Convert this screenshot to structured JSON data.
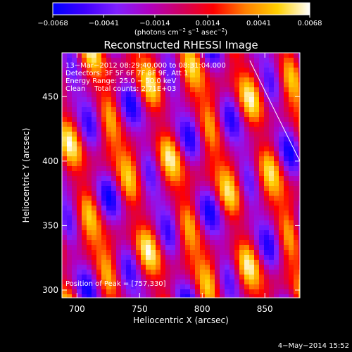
{
  "chart_data": {
    "type": "heatmap",
    "title": "Reconstructed RHESSI Image",
    "xlabel": "Heliocentric X (arcsec)",
    "ylabel": "Heliocentric Y (arcsec)",
    "xlim": [
      688,
      878
    ],
    "ylim": [
      294,
      484
    ],
    "x_ticks": [
      {
        "value": 700,
        "label": "700"
      },
      {
        "value": 750,
        "label": "750"
      },
      {
        "value": 800,
        "label": "800"
      },
      {
        "value": 850,
        "label": "850"
      }
    ],
    "y_ticks": [
      {
        "value": 300,
        "label": "300"
      },
      {
        "value": 350,
        "label": "350"
      },
      {
        "value": 400,
        "label": "400"
      },
      {
        "value": 450,
        "label": "450"
      }
    ],
    "colorbar": {
      "min": -0.0068,
      "max": 0.0068,
      "ticks": [
        {
          "value": -0.0068,
          "label": "−0.0068"
        },
        {
          "value": -0.0041,
          "label": "−0.0041"
        },
        {
          "value": -0.0014,
          "label": "−0.0014"
        },
        {
          "value": 0.0014,
          "label": "0.0014"
        },
        {
          "value": 0.0041,
          "label": "0.0041"
        },
        {
          "value": 0.0068,
          "label": "0.0068"
        }
      ],
      "colormap": [
        "#0000ff",
        "#4000ff",
        "#8020ff",
        "#b000c0",
        "#d00060",
        "#ff0000",
        "#ff8000",
        "#ffd000",
        "#ffffff"
      ]
    },
    "annotations": {
      "time": "13−Mar−2012 08:29:40.000 to 08:31:04.000",
      "detectors": "Detectors: 3F 5F 6F 7F 8F 9F, Att 1",
      "energy": "Energy Range: 25.0 − 50.0 keV",
      "clean": "Clean    Total counts: 2.71E+03",
      "peak": "Position of Peak = [757,330]"
    },
    "limb_line": {
      "x": [
        838,
        878
      ],
      "y": [
        478,
        400
      ]
    },
    "peak": {
      "x": 757,
      "y": 330
    }
  },
  "footer": {
    "timestamp": "4−May−2014 15:52"
  }
}
